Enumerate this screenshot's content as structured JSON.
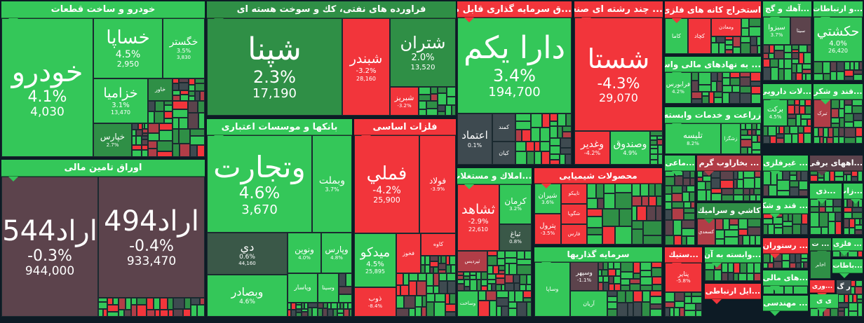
{
  "colors": {
    "green": "#34c759",
    "dgreen": "#2f8f46",
    "red": "#f2353b",
    "dred": "#b13d47",
    "maroon": "#5c434c",
    "slate": "#3e4a50",
    "teal": "#3a5848",
    "bg": "#0d1b25"
  },
  "sectors": [
    {
      "id": "auto",
      "title": "خودرو و ساخت قطعات",
      "color": "green",
      "tiles": [
        {
          "symbol": "خودرو",
          "change": "4.1%",
          "price": "4,030",
          "color": "green"
        },
        {
          "symbol": "خساپا",
          "change": "4.5%",
          "price": "2,950",
          "color": "green"
        },
        {
          "symbol": "خگستر",
          "change": "3.5%",
          "price": "3,830",
          "color": "green"
        },
        {
          "symbol": "خزامیا",
          "change": "3.1%",
          "price": "13,470",
          "color": "green"
        },
        {
          "symbol": "خاور",
          "color": "dgreen"
        },
        {
          "symbol": "خپارس",
          "change": "2.7%",
          "color": "dgreen"
        }
      ]
    },
    {
      "id": "bonds",
      "title": "اوراق تامین مالی",
      "color": "green",
      "tiles": [
        {
          "symbol": "اراد544",
          "change": "-0.3%",
          "price": "944,000",
          "color": "maroon"
        },
        {
          "symbol": "اراد494",
          "change": "-0.4%",
          "price": "933,470",
          "color": "maroon"
        }
      ]
    },
    {
      "id": "oil",
      "title": "فراورده های نفتی، كك و سوخت هسته ای",
      "color": "dgreen",
      "tiles": [
        {
          "symbol": "شپنا",
          "change": "2.3%",
          "price": "17,190",
          "color": "dgreen"
        },
        {
          "symbol": "شبندر",
          "change": "-3.2%",
          "price": "28,160",
          "color": "red"
        },
        {
          "symbol": "شتران",
          "change": "2.0%",
          "price": "13,520",
          "color": "dgreen"
        },
        {
          "symbol": "شبریز",
          "change": "-3.2%",
          "color": "red"
        }
      ]
    },
    {
      "id": "banks",
      "title": "بانكها و موسسات اعتباری",
      "color": "green",
      "tiles": [
        {
          "symbol": "وتجارت",
          "change": "4.6%",
          "price": "3,670",
          "color": "green"
        },
        {
          "symbol": "وبملت",
          "change": "3.7%",
          "color": "green"
        },
        {
          "symbol": "دي",
          "change": "0.6%",
          "price": "44,160",
          "color": "teal"
        },
        {
          "symbol": "ونوین",
          "change": "4.0%",
          "color": "green"
        },
        {
          "symbol": "وپارس",
          "change": "4.8%",
          "color": "green"
        },
        {
          "symbol": "وبصادر",
          "change": "4.6%",
          "color": "green"
        },
        {
          "symbol": "وپاسار",
          "color": "green"
        },
        {
          "symbol": "وسينا",
          "color": "green"
        }
      ]
    },
    {
      "id": "metals",
      "title": "فلزات اساسی",
      "color": "red",
      "tiles": [
        {
          "symbol": "فملي",
          "change": "-4.2%",
          "price": "25,900",
          "color": "red"
        },
        {
          "symbol": "فولاد",
          "change": "-3.9%",
          "color": "red"
        },
        {
          "symbol": "میدکو",
          "change": "4.5%",
          "price": "25,895",
          "color": "green"
        },
        {
          "symbol": "ذوب",
          "change": "-8.4%",
          "color": "red"
        },
        {
          "symbol": "فخوز",
          "color": "red"
        },
        {
          "symbol": "کاوه",
          "color": "red"
        }
      ]
    },
    {
      "id": "funds",
      "title": "...ق سرمایه گذاری قابل معامله",
      "color": "red",
      "tiles": [
        {
          "symbol": "دارا یکم",
          "change": "3.4%",
          "price": "194,700",
          "color": "green"
        },
        {
          "symbol": "اعتماد",
          "change": "0.1%",
          "color": "slate"
        },
        {
          "symbol": "کمند",
          "color": "slate"
        },
        {
          "symbol": "کیان",
          "color": "slate"
        }
      ]
    },
    {
      "id": "diversified",
      "title": "... چند رشته ای صنعتی",
      "color": "red",
      "tiles": [
        {
          "symbol": "شستا",
          "change": "-4.3%",
          "price": "29,070",
          "color": "red"
        },
        {
          "symbol": "وغدیر",
          "change": "-4.2%",
          "color": "red"
        },
        {
          "symbol": "وصندوق",
          "change": "4.9%",
          "color": "green"
        }
      ]
    },
    {
      "id": "mining",
      "title": "استخراج کانه های فلزی",
      "color": "red",
      "tiles": [
        {
          "symbol": "کاما",
          "color": "green"
        },
        {
          "symbol": "کچاد",
          "color": "red"
        },
        {
          "symbol": "ومعادن",
          "color": "red"
        }
      ]
    },
    {
      "id": "fin-inter",
      "title": "... به نهادهای مالی واسط",
      "color": "green",
      "tiles": [
        {
          "symbol": "فرابورس",
          "change": "4.2%",
          "color": "green"
        }
      ]
    },
    {
      "id": "agri",
      "title": "زراعت و خدمات وابسته",
      "color": "green",
      "tiles": [
        {
          "symbol": "تلیسه",
          "change": "8.2%",
          "color": "green"
        },
        {
          "symbol": "زشگزا",
          "color": "green"
        }
      ]
    },
    {
      "id": "cement",
      "title": "...آهك و گچ",
      "color": "green",
      "tiles": [
        {
          "symbol": "سبزوا",
          "change": "3.7%",
          "color": "green"
        },
        {
          "symbol": "سیتا",
          "color": "maroon"
        }
      ]
    },
    {
      "id": "telecom",
      "title": "...و ارتباطات",
      "color": "green",
      "tiles": [
        {
          "symbol": "حكشتي",
          "change": "4.0%",
          "price": "26,420",
          "color": "green"
        }
      ]
    },
    {
      "id": "pharma",
      "title": "...لات دارویی",
      "color": "green",
      "tiles": [
        {
          "symbol": "برکت",
          "change": "4.5%",
          "color": "green"
        }
      ]
    },
    {
      "id": "sugar1",
      "title": "...قند و شکر",
      "color": "green",
      "tiles": [
        {
          "symbol": "تبرک",
          "color": "dred"
        }
      ]
    },
    {
      "id": "s-mai",
      "title": "...ماعی",
      "color": "green",
      "tiles": []
    },
    {
      "id": "steam",
      "title": "... بخاراوب گرم",
      "color": "dred",
      "tiles": []
    },
    {
      "id": "tile-ceramic",
      "title": "کاشي و سرامیك",
      "color": "dgreen",
      "tiles": [
        {
          "symbol": "کسعدي",
          "color": "dred"
        }
      ]
    },
    {
      "id": "nonmetal",
      "title": "... غیرفلزی",
      "color": "green",
      "tiles": []
    },
    {
      "id": "electric",
      "title": "...اههای برقی",
      "color": "maroon",
      "tiles": []
    },
    {
      "id": "realestate",
      "title": "...املاك و مستغلات",
      "color": "green",
      "tiles": [
        {
          "symbol": "ثشاهد",
          "change": "-2.9%",
          "price": "22,610",
          "color": "red"
        },
        {
          "symbol": "کرمان",
          "change": "3.2%",
          "color": "green"
        },
        {
          "symbol": "ثباغ",
          "change": "0.8%",
          "color": "teal"
        },
        {
          "symbol": "ثپردیس",
          "color": "dred"
        },
        {
          "symbol": "وساخت",
          "color": "green"
        }
      ]
    },
    {
      "id": "chem",
      "title": "محصولات شیمیایی",
      "color": "red",
      "tiles": [
        {
          "symbol": "شیران",
          "change": "3.6%",
          "color": "green"
        },
        {
          "symbol": "پترول",
          "change": "-3.5%",
          "color": "red"
        },
        {
          "symbol": "تاپیکو",
          "color": "red"
        },
        {
          "symbol": "شگویا",
          "color": "red"
        },
        {
          "symbol": "فارس",
          "color": "red"
        }
      ]
    },
    {
      "id": "invest",
      "title": "سرمایه گذاریها",
      "color": "green",
      "tiles": [
        {
          "symbol": "وساپا",
          "color": "green"
        },
        {
          "symbol": "وسپهر",
          "change": "-1.1%",
          "color": "maroon"
        },
        {
          "symbol": "آریان",
          "color": "green"
        }
      ]
    },
    {
      "id": "plastic",
      "title": "...ستیك",
      "color": "red",
      "tiles": [
        {
          "symbol": "پتایر",
          "change": "-5.8%",
          "color": "red"
        }
      ]
    },
    {
      "id": "related",
      "title": "...وابسته به آن",
      "color": "green",
      "tiles": []
    },
    {
      "id": "comm-dev",
      "title": "...ایل ارتباطی",
      "color": "red",
      "tiles": []
    },
    {
      "id": "sugar2",
      "title": "... قند و شکر",
      "color": "green",
      "tiles": []
    },
    {
      "id": "restaurant",
      "title": "... رستوران",
      "color": "red",
      "tiles": []
    },
    {
      "id": "fin2",
      "title": "...های مالی",
      "color": "green",
      "tiles": []
    },
    {
      "id": "engineering",
      "title": "... مهندسی",
      "color": "green",
      "tiles": []
    },
    {
      "id": "food",
      "title": "...ذی",
      "color": "green",
      "tiles": []
    },
    {
      "id": "s-zat",
      "title": "...زات",
      "color": "green",
      "tiles": []
    },
    {
      "id": "s-t",
      "title": "... ت",
      "color": "dgreen",
      "tiles": [
        {
          "symbol": "اخابر",
          "color": "dgreen"
        }
      ]
    },
    {
      "id": "metal2",
      "title": "... فلزی",
      "color": "green",
      "tiles": []
    },
    {
      "id": "s-batat",
      "title": "...باطات",
      "color": "green",
      "tiles": []
    },
    {
      "id": "s-vari",
      "title": "...وری",
      "color": "red",
      "tiles": []
    },
    {
      "id": "s-g",
      "title": "ر گ",
      "color": "slate",
      "tiles": []
    },
    {
      "id": "s-y",
      "title": "ی ی",
      "color": "green",
      "tiles": []
    }
  ]
}
